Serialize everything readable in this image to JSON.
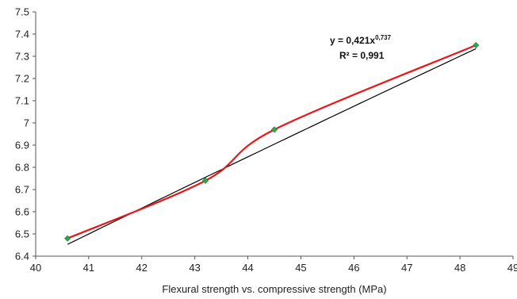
{
  "chart_data": {
    "type": "scatter",
    "xlabel": "Flexural strength vs. compressive strength (MPa)",
    "ylabel": "",
    "xlim": [
      40,
      49
    ],
    "ylim": [
      6.4,
      7.5
    ],
    "x_ticks": [
      "40",
      "41",
      "42",
      "43",
      "44",
      "45",
      "46",
      "47",
      "48",
      "49"
    ],
    "y_ticks": [
      "6.4",
      "6.5",
      "6.6",
      "6.7",
      "6.8",
      "6.9",
      "7",
      "7.1",
      "7.2",
      "7.3",
      "7.4",
      "7.5"
    ],
    "grid": false,
    "series": [
      {
        "points": [
          {
            "x": 40.6,
            "y": 6.48
          },
          {
            "x": 43.2,
            "y": 6.74
          },
          {
            "x": 44.5,
            "y": 6.97
          },
          {
            "x": 48.3,
            "y": 7.35
          }
        ],
        "marker_color": "#2ea84a",
        "smooth_line_color": "#e8151b"
      }
    ],
    "trendline": {
      "type": "power",
      "a": 0.421,
      "b": 0.737,
      "color": "#000000",
      "equation_prefix": "y = 0,421x",
      "equation_exponent": "0,737",
      "r2_text": "R² = 0,991"
    }
  }
}
